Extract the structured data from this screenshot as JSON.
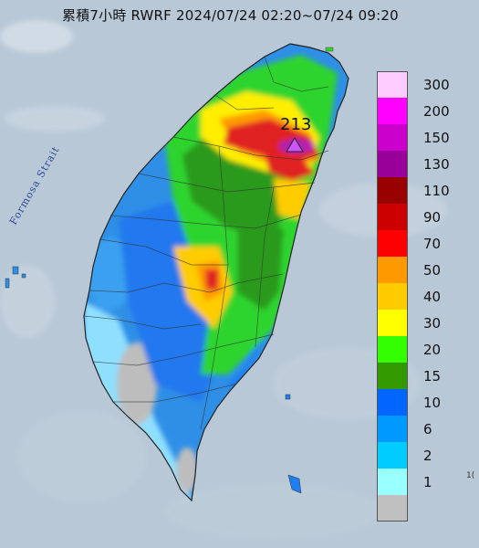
{
  "title": "累積7小時 RWRF 2024/07/24 02:20~07/24 09:20",
  "max_value_label": "213",
  "strait_label": "Formosa Strait",
  "edge_label": "1(",
  "legend": {
    "items": [
      {
        "label": "300",
        "color": "#ffccff"
      },
      {
        "label": "200",
        "color": "#ff00ff"
      },
      {
        "label": "150",
        "color": "#cc00cc"
      },
      {
        "label": "130",
        "color": "#990099"
      },
      {
        "label": "110",
        "color": "#990000"
      },
      {
        "label": "90",
        "color": "#cc0000"
      },
      {
        "label": "70",
        "color": "#ff0000"
      },
      {
        "label": "50",
        "color": "#ff9900"
      },
      {
        "label": "40",
        "color": "#ffcc00"
      },
      {
        "label": "30",
        "color": "#ffff00"
      },
      {
        "label": "20",
        "color": "#33ff00"
      },
      {
        "label": "15",
        "color": "#339900"
      },
      {
        "label": "10",
        "color": "#0066ff"
      },
      {
        "label": "6",
        "color": "#0099ff"
      },
      {
        "label": "2",
        "color": "#00ccff"
      },
      {
        "label": "1",
        "color": "#99ffff"
      },
      {
        "label": "",
        "color": "#c0c0c0"
      }
    ]
  },
  "colors": {
    "sea": "#b9c9d6",
    "base_blue": "#2f8fe6",
    "mid_blue": "#1f7ff0",
    "light_blue": "#8fdfff",
    "green": "#2fd42f",
    "dark_green": "#2a9a1f",
    "yellow": "#ffee00",
    "orange": "#ff9900",
    "red": "#e02020",
    "purple": "#cc33cc",
    "gray": "#b8b8b8"
  }
}
